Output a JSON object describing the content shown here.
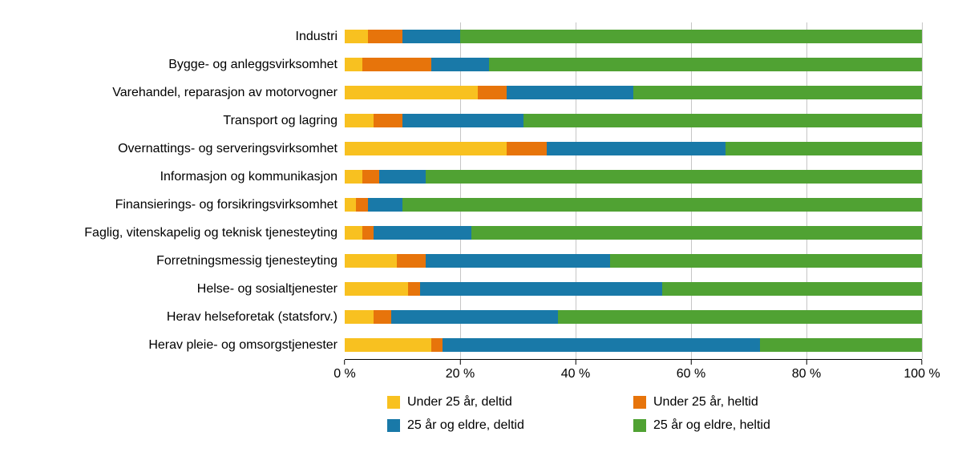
{
  "chart_data": {
    "type": "bar",
    "orientation": "horizontal",
    "stacked": true,
    "title": "",
    "xlabel": "",
    "ylabel": "",
    "xlim": [
      0,
      100
    ],
    "grid": true,
    "legend_position": "bottom",
    "x_ticks": [
      "0 %",
      "20 %",
      "40 %",
      "60 %",
      "80 %",
      "100 %"
    ],
    "x_tick_values": [
      0,
      20,
      40,
      60,
      80,
      100
    ],
    "categories": [
      "Industri",
      "Bygge- og anleggsvirksomhet",
      "Varehandel, reparasjon av motorvogner",
      "Transport og lagring",
      "Overnattings- og serveringsvirksomhet",
      "Informasjon og kommunikasjon",
      "Finansierings- og forsikringsvirksomhet",
      "Faglig, vitenskapelig og teknisk tjenesteyting",
      "Forretningsmessig tjenesteyting",
      "Helse- og sosialtjenester",
      "Herav helseforetak (statsforv.)",
      "Herav pleie- og omsorgstjenester"
    ],
    "series": [
      {
        "name": "Under 25 år, deltid",
        "color": "#f8c120",
        "values": [
          4,
          3,
          23,
          5,
          28,
          3,
          2,
          3,
          9,
          11,
          5,
          15
        ]
      },
      {
        "name": "Under 25 år, heltid",
        "color": "#e7740b",
        "values": [
          6,
          12,
          5,
          5,
          7,
          3,
          2,
          2,
          5,
          2,
          3,
          2
        ]
      },
      {
        "name": "25 år og eldre, deltid",
        "color": "#1979a8",
        "values": [
          10,
          10,
          22,
          21,
          31,
          8,
          6,
          17,
          32,
          42,
          29,
          55
        ]
      },
      {
        "name": "25 år og eldre, heltid",
        "color": "#50a233",
        "values": [
          80,
          75,
          50,
          69,
          34,
          86,
          90,
          78,
          54,
          45,
          63,
          28
        ]
      }
    ],
    "colors": {
      "gridline": "#c6c6c6",
      "axis": "#000000",
      "text": "#000000"
    }
  }
}
